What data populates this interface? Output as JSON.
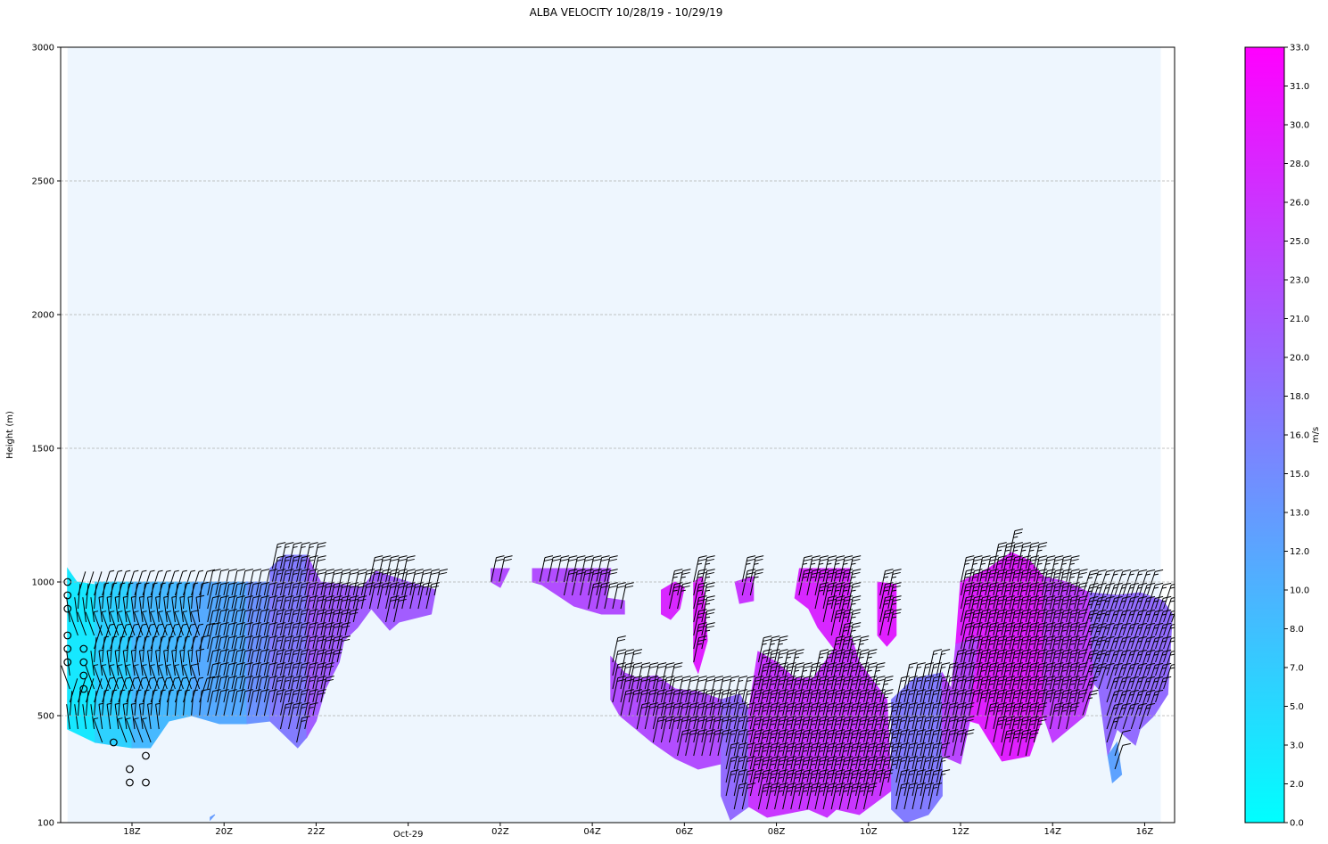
{
  "chart_data": {
    "type": "heatmap",
    "title": "ALBA VELOCITY 10/28/19 - 10/29/19",
    "ylabel": "Height (m)",
    "xlabel": "",
    "ylim": [
      100,
      3000
    ],
    "y_ticks": [
      100,
      500,
      1000,
      1500,
      2000,
      2500,
      3000
    ],
    "x_ticks": [
      {
        "hour": 18,
        "label": "18Z"
      },
      {
        "hour": 20,
        "label": "20Z"
      },
      {
        "hour": 22,
        "label": "22Z"
      },
      {
        "hour": 24,
        "label": "Oct-29"
      },
      {
        "hour": 26,
        "label": "02Z"
      },
      {
        "hour": 28,
        "label": "04Z"
      },
      {
        "hour": 30,
        "label": "06Z"
      },
      {
        "hour": 32,
        "label": "08Z"
      },
      {
        "hour": 34,
        "label": "10Z"
      },
      {
        "hour": 36,
        "label": "12Z"
      },
      {
        "hour": 38,
        "label": "14Z"
      },
      {
        "hour": 40,
        "label": "16Z"
      }
    ],
    "xlim_hours": [
      16.45,
      40.65
    ],
    "grid": "horizontal dashed",
    "background_color": "#eef6fe",
    "colorbar": {
      "label": "m/s",
      "ticks": [
        "0.0",
        "2.0",
        "3.0",
        "5.0",
        "7.0",
        "8.0",
        "10.0",
        "12.0",
        "13.0",
        "15.0",
        "16.0",
        "18.0",
        "20.0",
        "21.0",
        "23.0",
        "25.0",
        "26.0",
        "28.0",
        "30.0",
        "31.0",
        "33.0"
      ],
      "color_min": "#00ffff",
      "color_max": "#ff00ff"
    },
    "regions": [
      {
        "speed": 3,
        "points": [
          [
            16.6,
            1050
          ],
          [
            16.8,
            1000
          ],
          [
            17.2,
            990
          ],
          [
            17.2,
            400
          ],
          [
            16.6,
            450
          ]
        ]
      },
      {
        "speed": 6,
        "points": [
          [
            17.2,
            1000
          ],
          [
            18.0,
            1000
          ],
          [
            18.0,
            380
          ],
          [
            17.2,
            400
          ]
        ]
      },
      {
        "speed": 9,
        "points": [
          [
            18.0,
            1000
          ],
          [
            19.3,
            1000
          ],
          [
            19.3,
            500
          ],
          [
            18.8,
            480
          ],
          [
            18.4,
            380
          ],
          [
            18.0,
            380
          ]
        ]
      },
      {
        "speed": 11,
        "points": [
          [
            19.3,
            1000
          ],
          [
            20.5,
            1000
          ],
          [
            20.5,
            470
          ],
          [
            19.9,
            470
          ],
          [
            19.3,
            500
          ]
        ]
      },
      {
        "speed": 13,
        "points": [
          [
            19.7,
            110
          ],
          [
            19.8,
            130
          ],
          [
            19.7,
            120
          ]
        ]
      },
      {
        "speed": 14,
        "points": [
          [
            20.5,
            1000
          ],
          [
            21.0,
            1000
          ],
          [
            21.0,
            480
          ],
          [
            20.5,
            470
          ]
        ]
      },
      {
        "speed": 17,
        "points": [
          [
            21.0,
            1050
          ],
          [
            21.3,
            1100
          ],
          [
            21.8,
            1100
          ],
          [
            21.8,
            420
          ],
          [
            21.6,
            380
          ],
          [
            21.0,
            480
          ]
        ]
      },
      {
        "speed": 21,
        "points": [
          [
            21.8,
            1100
          ],
          [
            22.1,
            1000
          ],
          [
            23.0,
            980
          ],
          [
            23.3,
            1040
          ],
          [
            24.0,
            1000
          ],
          [
            24.6,
            970
          ],
          [
            24.5,
            880
          ],
          [
            23.8,
            850
          ],
          [
            23.6,
            820
          ],
          [
            23.2,
            900
          ],
          [
            22.9,
            830
          ],
          [
            22.6,
            780
          ],
          [
            22.5,
            700
          ],
          [
            22.2,
            600
          ],
          [
            22.0,
            480
          ],
          [
            21.8,
            420
          ]
        ]
      },
      {
        "speed": 23,
        "points": [
          [
            25.8,
            1050
          ],
          [
            26.2,
            1050
          ],
          [
            26.0,
            980
          ],
          [
            25.8,
            1000
          ]
        ]
      },
      {
        "speed": 23,
        "points": [
          [
            26.7,
            1050
          ],
          [
            28.4,
            1050
          ],
          [
            28.3,
            940
          ],
          [
            28.7,
            930
          ],
          [
            28.7,
            880
          ],
          [
            28.2,
            880
          ],
          [
            27.6,
            910
          ],
          [
            26.9,
            990
          ],
          [
            26.7,
            1000
          ]
        ]
      },
      {
        "speed": 23,
        "points": [
          [
            28.4,
            720
          ],
          [
            28.7,
            660
          ],
          [
            29.0,
            640
          ],
          [
            29.4,
            650
          ],
          [
            29.8,
            600
          ],
          [
            30.3,
            590
          ],
          [
            30.8,
            560
          ],
          [
            30.8,
            320
          ],
          [
            30.3,
            300
          ],
          [
            29.8,
            340
          ],
          [
            29.3,
            400
          ],
          [
            28.6,
            500
          ],
          [
            28.4,
            560
          ]
        ]
      },
      {
        "speed": 19,
        "points": [
          [
            30.8,
            560
          ],
          [
            31.2,
            580
          ],
          [
            31.4,
            520
          ],
          [
            31.4,
            160
          ],
          [
            31.0,
            110
          ],
          [
            30.8,
            200
          ],
          [
            30.8,
            320
          ]
        ]
      },
      {
        "speed": 26,
        "points": [
          [
            31.4,
            520
          ],
          [
            31.6,
            740
          ],
          [
            32.0,
            700
          ],
          [
            32.4,
            640
          ],
          [
            32.8,
            640
          ],
          [
            33.3,
            760
          ],
          [
            33.5,
            860
          ],
          [
            33.8,
            700
          ],
          [
            34.4,
            560
          ],
          [
            34.5,
            220
          ],
          [
            33.8,
            130
          ],
          [
            33.3,
            150
          ],
          [
            33.1,
            120
          ],
          [
            32.7,
            150
          ],
          [
            31.8,
            120
          ],
          [
            31.4,
            160
          ]
        ]
      },
      {
        "speed": 28,
        "points": [
          [
            32.4,
            940
          ],
          [
            32.5,
            1050
          ],
          [
            33.6,
            1050
          ],
          [
            33.6,
            800
          ],
          [
            33.3,
            740
          ],
          [
            32.9,
            830
          ],
          [
            32.7,
            900
          ]
        ]
      },
      {
        "speed": 28,
        "points": [
          [
            29.5,
            970
          ],
          [
            29.8,
            1000
          ],
          [
            30.0,
            980
          ],
          [
            29.9,
            900
          ],
          [
            29.7,
            860
          ],
          [
            29.5,
            880
          ]
        ]
      },
      {
        "speed": 29,
        "points": [
          [
            30.2,
            1000
          ],
          [
            30.4,
            1020
          ],
          [
            30.5,
            780
          ],
          [
            30.3,
            660
          ],
          [
            30.2,
            700
          ]
        ]
      },
      {
        "speed": 26,
        "points": [
          [
            31.1,
            1000
          ],
          [
            31.5,
            1020
          ],
          [
            31.5,
            930
          ],
          [
            31.2,
            920
          ]
        ]
      },
      {
        "speed": 29,
        "points": [
          [
            34.2,
            1000
          ],
          [
            34.6,
            990
          ],
          [
            34.6,
            800
          ],
          [
            34.4,
            760
          ],
          [
            34.2,
            800
          ]
        ]
      },
      {
        "speed": 17,
        "points": [
          [
            34.5,
            560
          ],
          [
            35.0,
            640
          ],
          [
            35.6,
            660
          ],
          [
            35.6,
            200
          ],
          [
            35.3,
            130
          ],
          [
            34.8,
            100
          ],
          [
            34.5,
            150
          ]
        ]
      },
      {
        "speed": 24,
        "points": [
          [
            35.6,
            660
          ],
          [
            35.8,
            600
          ],
          [
            35.9,
            770
          ],
          [
            36.4,
            800
          ],
          [
            36.2,
            480
          ],
          [
            36.0,
            320
          ],
          [
            35.6,
            350
          ]
        ]
      },
      {
        "speed": 29,
        "points": [
          [
            35.9,
            770
          ],
          [
            36.0,
            1000
          ],
          [
            36.6,
            1050
          ],
          [
            37.1,
            1110
          ],
          [
            37.5,
            1080
          ],
          [
            37.8,
            1020
          ],
          [
            37.9,
            880
          ],
          [
            37.8,
            500
          ],
          [
            37.5,
            350
          ],
          [
            36.9,
            330
          ],
          [
            36.4,
            470
          ],
          [
            36.2,
            480
          ],
          [
            36.4,
            800
          ]
        ]
      },
      {
        "speed": 25,
        "points": [
          [
            37.8,
            1020
          ],
          [
            38.3,
            1000
          ],
          [
            38.8,
            960
          ],
          [
            38.9,
            620
          ],
          [
            38.7,
            500
          ],
          [
            38.0,
            400
          ],
          [
            37.8,
            500
          ]
        ]
      },
      {
        "speed": 19,
        "points": [
          [
            38.8,
            960
          ],
          [
            39.4,
            950
          ],
          [
            39.9,
            960
          ],
          [
            40.4,
            930
          ],
          [
            40.6,
            880
          ],
          [
            40.5,
            580
          ],
          [
            40.2,
            500
          ],
          [
            39.9,
            450
          ],
          [
            39.8,
            390
          ],
          [
            39.4,
            450
          ],
          [
            39.2,
            350
          ],
          [
            39.0,
            600
          ],
          [
            38.9,
            620
          ]
        ]
      },
      {
        "speed": 12,
        "points": [
          [
            39.2,
            350
          ],
          [
            39.4,
            400
          ],
          [
            39.5,
            280
          ],
          [
            39.3,
            250
          ]
        ]
      }
    ],
    "barbs": {
      "description": "wind barbs plotted on a regular time-height grid over the data region"
    },
    "calm_circles": [
      [
        16.6,
        1000
      ],
      [
        16.6,
        950
      ],
      [
        16.6,
        900
      ],
      [
        16.6,
        800
      ],
      [
        16.6,
        750
      ],
      [
        16.6,
        700
      ],
      [
        16.95,
        750
      ],
      [
        16.95,
        700
      ],
      [
        16.95,
        650
      ],
      [
        16.95,
        600
      ],
      [
        17.6,
        400
      ],
      [
        17.95,
        300
      ],
      [
        17.95,
        250
      ],
      [
        18.3,
        350
      ],
      [
        18.3,
        250
      ]
    ]
  }
}
